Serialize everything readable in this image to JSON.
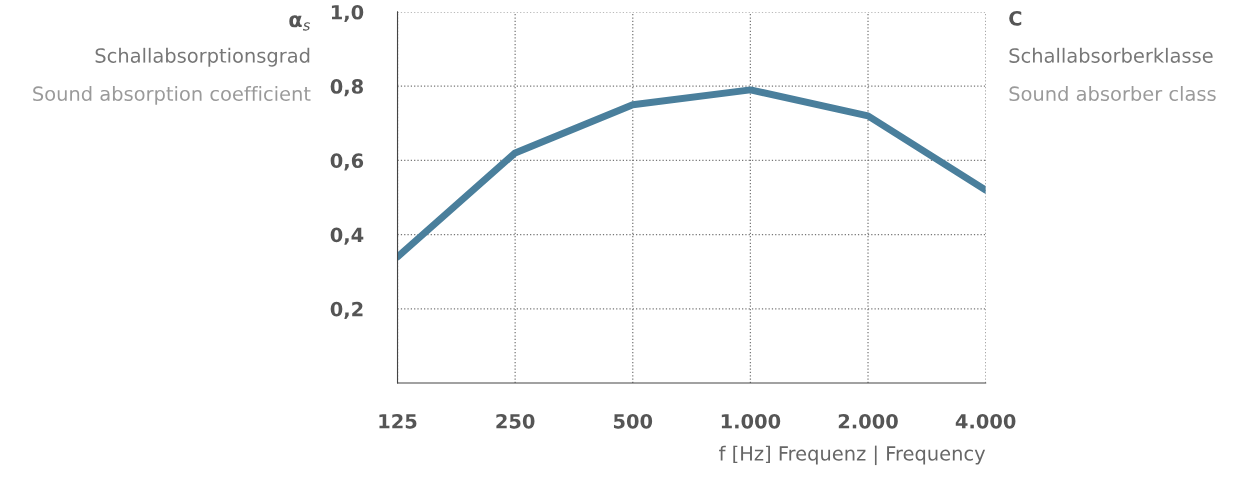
{
  "chart_data": {
    "type": "line",
    "categories": [
      "125",
      "250",
      "500",
      "1.000",
      "2.000",
      "4.000"
    ],
    "series": [
      {
        "color": "#4a7f9c",
        "values": [
          0.34,
          0.62,
          0.75,
          0.79,
          0.72,
          0.52
        ]
      }
    ],
    "ylim": [
      0,
      1.0
    ],
    "yticks": [
      {
        "value": 0.2,
        "label": "0,2"
      },
      {
        "value": 0.4,
        "label": "0,4"
      },
      {
        "value": 0.6,
        "label": "0,6"
      },
      {
        "value": 0.8,
        "label": "0,8"
      },
      {
        "value": 1.0,
        "label": "1,0"
      }
    ],
    "ylabel": "α$_{s}$",
    "xlabel": "f [Hz] Frequenz | Frequency",
    "annotations": [
      "Schallabsorptionsgrad",
      "Sound absorption coefficient",
      "C",
      "Schallabsorberklasse",
      "Sound absorber class"
    ],
    "grid": true,
    "marker": "none",
    "line_style": "solid"
  }
}
